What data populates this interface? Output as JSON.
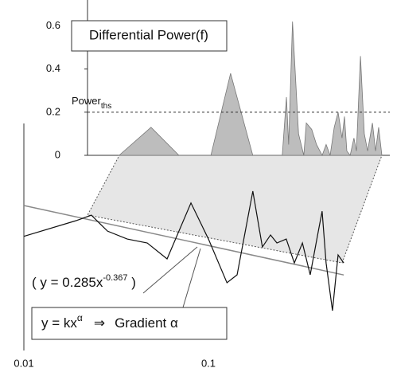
{
  "chart_data": [
    {
      "type": "area",
      "title": "Differential Power(f)",
      "x": [
        0.0221,
        0.0329,
        0.0466,
        0.0694,
        0.0887,
        0.117,
        0.169,
        0.178,
        0.183,
        0.192,
        0.207,
        0.221,
        0.228,
        0.244,
        0.259,
        0.278,
        0.292,
        0.307,
        0.323,
        0.339,
        0.356,
        0.367,
        0.378,
        0.394,
        0.413,
        0.426,
        0.448,
        0.47,
        0.49,
        0.52,
        0.541,
        0.562,
        0.585
      ],
      "values": [
        0,
        0.13,
        0,
        0,
        0.38,
        0,
        0,
        0.27,
        0.05,
        0.62,
        0.1,
        0,
        0.15,
        0.12,
        0.05,
        0,
        0.05,
        0,
        0.13,
        0.2,
        0.08,
        0.18,
        0.02,
        0,
        0.08,
        0.02,
        0.46,
        0.1,
        0.02,
        0.15,
        0.02,
        0.13,
        0
      ],
      "color": "#bdbdbd",
      "log_x": true,
      "xlim": [
        0.0149,
        0.646
      ],
      "ylim": [
        0,
        0.72
      ],
      "yticks": [
        0,
        0.2,
        0.4,
        0.6
      ],
      "threshold": 0.2,
      "threshold_label": {
        "main": "Power",
        "sub": "ths"
      }
    },
    {
      "type": "line",
      "x": [
        0.01,
        0.0191,
        0.0232,
        0.0284,
        0.0363,
        0.0466,
        0.0597,
        0.0804,
        0.1,
        0.126,
        0.143,
        0.174,
        0.196,
        0.217,
        0.235,
        0.264,
        0.292,
        0.323,
        0.356,
        0.394,
        0.413,
        0.434,
        0.47,
        0.504,
        0.541
      ],
      "values": [
        0.806,
        1.12,
        1.26,
        0.9,
        0.762,
        0.701,
        0.501,
        1.63,
        0.762,
        0.303,
        0.358,
        2.09,
        0.644,
        0.83,
        0.701,
        0.762,
        0.46,
        0.701,
        0.358,
        0.9,
        1.37,
        0.46,
        0.168,
        0.545,
        0.46
      ],
      "color": "#111111",
      "log_x": true,
      "log_y": true,
      "xlim": [
        0.01,
        1
      ],
      "xticks": [
        0.01,
        0.1
      ],
      "ylim": [
        0.0726,
        9.48
      ],
      "fit": {
        "k": 0.285,
        "alpha": -0.367,
        "color": "#8a8a8a"
      },
      "fit_label": {
        "open": "( y = ",
        "var": "x",
        "close": " )"
      },
      "formula": {
        "base": "y = kx",
        "exp": "α",
        "arrow": "⇒",
        "text": "Gradient α"
      }
    }
  ]
}
